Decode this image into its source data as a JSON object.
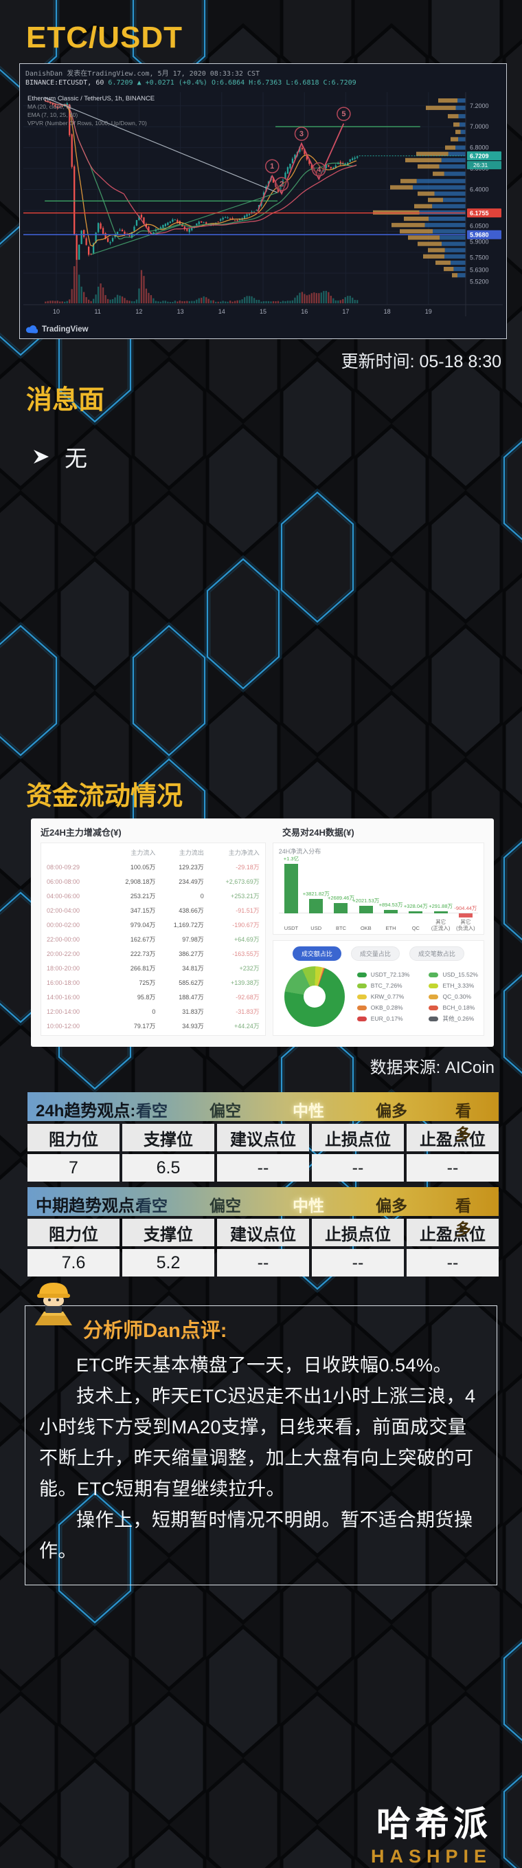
{
  "page": {
    "title": "ETC/USDT",
    "update_time": "更新时间: 05-18 8:30",
    "flow_source": "数据来源: AICoin",
    "brand_cn": "哈希派",
    "brand_en": "HASHPIE"
  },
  "news": {
    "heading": "消息面",
    "items": [
      "无"
    ]
  },
  "flow": {
    "heading": "资金流动情况",
    "left_title": "近24H主力增减仓(¥)",
    "right_title": "交易对24H数据(¥)",
    "netflow_title": "24H净流入分布",
    "columns": [
      "",
      "主力流入",
      "主力流出",
      "主力净流入"
    ],
    "rows": [
      [
        "08:00-09:29",
        "100.05万",
        "129.23万",
        "-29.18万"
      ],
      [
        "06:00-08:00",
        "2,908.18万",
        "234.49万",
        "+2,673.69万"
      ],
      [
        "04:00-06:00",
        "253.21万",
        "0",
        "+253.21万"
      ],
      [
        "02:00-04:00",
        "347.15万",
        "438.66万",
        "-91.51万"
      ],
      [
        "00:00-02:00",
        "979.04万",
        "1,169.72万",
        "-190.67万"
      ],
      [
        "22:00-00:00",
        "162.67万",
        "97.98万",
        "+64.69万"
      ],
      [
        "20:00-22:00",
        "222.73万",
        "386.27万",
        "-163.55万"
      ],
      [
        "18:00-20:00",
        "266.81万",
        "34.81万",
        "+232万"
      ],
      [
        "16:00-18:00",
        "725万",
        "585.62万",
        "+139.38万"
      ],
      [
        "14:00-16:00",
        "95.8万",
        "188.47万",
        "-92.68万"
      ],
      [
        "12:00-14:00",
        "0",
        "31.83万",
        "-31.83万"
      ],
      [
        "10:00-12:00",
        "79.17万",
        "34.93万",
        "+44.24万"
      ]
    ],
    "pills": [
      "成交额占比",
      "成交量占比",
      "成交笔数占比"
    ],
    "active_pill": 0
  },
  "chart_data": [
    {
      "type": "candlestick",
      "byline": "DanishDan 发表在TradingView.com, 5月 17, 2020 08:33:32 CST",
      "symbol": "BINANCE:ETCUSDT, 60",
      "quote_price": "6.7209",
      "quote_change": "▲ +0.0271 (+0.4%)",
      "quote_ohlc": "O:6.6864 H:6.7363 L:6.6818 C:6.7209",
      "overlays": [
        "Ethereum Classic / TetherUS, 1h, BINANCE",
        "MA (20, close, 0)",
        "EMA (7, 10, 25, 30)",
        "VPVR (Number Of Rows, 1000, Up/Down, 70)"
      ],
      "watermark": "TradingView",
      "x_labels": [
        "10",
        "11",
        "12",
        "13",
        "14",
        "15",
        "16",
        "17",
        "18",
        "19"
      ],
      "y_ticks": [
        [
          7.2,
          "7.2000"
        ],
        [
          7.0,
          "7.0000"
        ],
        [
          6.8,
          "6.8000"
        ],
        [
          6.6,
          "6.6000"
        ],
        [
          6.4,
          "6.4000"
        ],
        [
          6.05,
          "6.0500"
        ],
        [
          5.9,
          "5.9000"
        ],
        [
          5.75,
          "5.7500"
        ],
        [
          5.63,
          "5.6300"
        ],
        [
          5.52,
          "5.5200"
        ]
      ],
      "price_chip": {
        "p": 6.7209,
        "label": "6.7209",
        "countdown": "26:31",
        "color": "#26a69a"
      },
      "level_chips": [
        {
          "p": 6.1755,
          "label": "6.1755",
          "color": "#e0433a"
        },
        {
          "p": 5.968,
          "label": "5.9680",
          "color": "#3f5fd0"
        }
      ],
      "green_segments": [
        [
          7.0,
          15.3,
          18.8
        ],
        [
          6.29,
          9.72,
          15.35
        ]
      ],
      "trend_lines": [
        [
          9.72,
          7.28,
          15.35,
          6.37,
          "#b9c2cc"
        ],
        [
          10.85,
          5.78,
          15.35,
          6.37,
          "#43a06c"
        ]
      ],
      "wave_path": [
        [
          14.87,
          6.19
        ],
        [
          15.22,
          6.53
        ],
        [
          15.45,
          6.36
        ],
        [
          15.93,
          6.84
        ],
        [
          16.35,
          6.5
        ],
        [
          16.95,
          7.03
        ]
      ],
      "elliott_wave": [
        [
          15.22,
          6.53,
          "1"
        ],
        [
          15.45,
          6.36,
          "2"
        ],
        [
          15.93,
          6.84,
          "3"
        ],
        [
          16.35,
          6.5,
          "4"
        ],
        [
          16.95,
          7.03,
          "5"
        ]
      ],
      "price_anchors": [
        [
          9.7,
          7.26
        ],
        [
          10.05,
          7.18
        ],
        [
          10.3,
          7.22
        ],
        [
          10.42,
          6.6
        ],
        [
          10.5,
          5.66
        ],
        [
          10.65,
          6.02
        ],
        [
          10.85,
          5.74
        ],
        [
          11.05,
          6.08
        ],
        [
          11.3,
          5.88
        ],
        [
          11.55,
          6.02
        ],
        [
          11.8,
          5.94
        ],
        [
          12.05,
          6.16
        ],
        [
          12.3,
          5.97
        ],
        [
          12.6,
          6.05
        ],
        [
          12.9,
          6.12
        ],
        [
          13.2,
          6.0
        ],
        [
          13.5,
          6.09
        ],
        [
          13.8,
          6.06
        ],
        [
          14.1,
          6.14
        ],
        [
          14.4,
          6.1
        ],
        [
          14.7,
          6.17
        ],
        [
          14.9,
          6.21
        ],
        [
          15.1,
          6.42
        ],
        [
          15.22,
          6.52
        ],
        [
          15.4,
          6.37
        ],
        [
          15.6,
          6.58
        ],
        [
          15.8,
          6.72
        ],
        [
          15.95,
          6.82
        ],
        [
          16.1,
          6.68
        ],
        [
          16.25,
          6.58
        ],
        [
          16.4,
          6.54
        ],
        [
          16.55,
          6.64
        ],
        [
          16.7,
          6.59
        ],
        [
          16.85,
          6.66
        ],
        [
          17.0,
          6.63
        ],
        [
          17.15,
          6.69
        ],
        [
          17.32,
          6.72
        ]
      ],
      "volume_spikes": [
        [
          10.45,
          0.06,
          52
        ],
        [
          10.56,
          0.1,
          18
        ],
        [
          11.05,
          0.08,
          26
        ],
        [
          11.5,
          0.12,
          9
        ],
        [
          12.05,
          0.05,
          40
        ],
        [
          12.17,
          0.1,
          14
        ],
        [
          13.55,
          0.1,
          7
        ],
        [
          14.65,
          0.12,
          8
        ],
        [
          15.9,
          0.1,
          13
        ],
        [
          16.2,
          0.12,
          11
        ],
        [
          16.5,
          0.12,
          14
        ],
        [
          17.05,
          0.1,
          8
        ]
      ],
      "volume_profile": [
        [
          7.25,
          40,
          0.7
        ],
        [
          7.18,
          58,
          0.75
        ],
        [
          7.1,
          26,
          0.6
        ],
        [
          7.02,
          18,
          0.5
        ],
        [
          6.95,
          15,
          0.5
        ],
        [
          6.88,
          22,
          0.5
        ],
        [
          6.8,
          30,
          0.5
        ],
        [
          6.74,
          72,
          0.65
        ],
        [
          6.68,
          88,
          0.6
        ],
        [
          6.62,
          70,
          0.45
        ],
        [
          6.55,
          48,
          0.35
        ],
        [
          6.48,
          95,
          0.25
        ],
        [
          6.42,
          110,
          0.3
        ],
        [
          6.36,
          70,
          0.35
        ],
        [
          6.3,
          55,
          0.4
        ],
        [
          6.24,
          75,
          0.35
        ],
        [
          6.18,
          135,
          0.5
        ],
        [
          6.12,
          90,
          0.4
        ],
        [
          6.06,
          108,
          0.45
        ],
        [
          6.0,
          96,
          0.5
        ],
        [
          5.94,
          84,
          0.55
        ],
        [
          5.88,
          70,
          0.5
        ],
        [
          5.82,
          55,
          0.45
        ],
        [
          5.76,
          62,
          0.5
        ],
        [
          5.7,
          44,
          0.5
        ],
        [
          5.64,
          32,
          0.45
        ],
        [
          5.58,
          20,
          0.4
        ]
      ],
      "current_price": 6.7209,
      "axis_range": {
        "day_min": 9.7,
        "day_max": 19.9,
        "price_min": 5.45,
        "price_max": 7.33
      }
    },
    {
      "type": "bar",
      "title": "24H净流入分布",
      "categories": [
        "USDT",
        "USD",
        "BTC",
        "OKB",
        "ETH",
        "QC",
        "其它(正流入)",
        "其它(负流入)"
      ],
      "values_wan": [
        13000,
        3821.82,
        2689.46,
        2021.53,
        894.53,
        328.04,
        291.88,
        -904.44
      ],
      "value_labels": [
        "+1.3亿",
        "+3821.82万",
        "+2689.46万",
        "+2021.53万",
        "+894.53万",
        "+328.04万",
        "+291.88万",
        "-904.44万"
      ]
    },
    {
      "type": "pie",
      "title": "成交额占比",
      "slices": [
        {
          "label": "USDT_72.13%",
          "value": 72.13,
          "color": "#2f9e44"
        },
        {
          "label": "USD_15.52%",
          "value": 15.52,
          "color": "#55b45a"
        },
        {
          "label": "BTC_7.26%",
          "value": 7.26,
          "color": "#8fc93a"
        },
        {
          "label": "ETH_3.33%",
          "value": 3.33,
          "color": "#c3d62f"
        },
        {
          "label": "KRW_0.77%",
          "value": 0.77,
          "color": "#e7c93c"
        },
        {
          "label": "QC_0.30%",
          "value": 0.3,
          "color": "#e2a83b"
        },
        {
          "label": "OKB_0.28%",
          "value": 0.28,
          "color": "#e2823a"
        },
        {
          "label": "BCH_0.18%",
          "value": 0.18,
          "color": "#de5b43"
        },
        {
          "label": "EUR_0.17%",
          "value": 0.17,
          "color": "#d64545"
        },
        {
          "label": "其他_0.26%",
          "value": 0.26,
          "color": "#5a5f66"
        }
      ],
      "legend_column_order": [
        0,
        2,
        4,
        6,
        8,
        1,
        3,
        5,
        7,
        9
      ]
    }
  ],
  "trend_tables": [
    {
      "label": "24h趋势观点:",
      "scale": [
        "看空",
        "偏空",
        "中性",
        "偏多",
        "看多"
      ],
      "active": "中性",
      "headers": [
        "阻力位",
        "支撑位",
        "建议点位",
        "止损点位",
        "止盈点位"
      ],
      "values": [
        "7",
        "6.5",
        "--",
        "--",
        "--"
      ]
    },
    {
      "label": "中期趋势观点:",
      "scale": [
        "看空",
        "偏空",
        "中性",
        "偏多",
        "看多"
      ],
      "active": "中性",
      "headers": [
        "阻力位",
        "支撑位",
        "建议点位",
        "止损点位",
        "止盈点位"
      ],
      "values": [
        "7.6",
        "5.2",
        "--",
        "--",
        "--"
      ]
    }
  ],
  "analyst": {
    "title": "分析师Dan点评:",
    "paragraphs": [
      "ETC昨天基本横盘了一天，日收跌幅0.54%。",
      "技术上，昨天ETC迟迟走不出1小时上涨三浪，4小时线下方受到MA20支撑，日线来看，前面成交量不断上升，昨天缩量调整，加上大盘有向上突破的可能。ETC短期有望继续拉升。",
      "操作上，短期暂时情况不明朗。暂不适合期货操作。"
    ]
  },
  "colors": {
    "accent_gold": "#f0b929",
    "up_teal": "#26a69a",
    "down_red": "#ef5350",
    "level_red": "#e0433a",
    "level_blue": "#3f5fd0",
    "band_blue": "#6d9dcb",
    "band_gold": "#c7931b",
    "aicoin_blue": "#3a66d0"
  }
}
